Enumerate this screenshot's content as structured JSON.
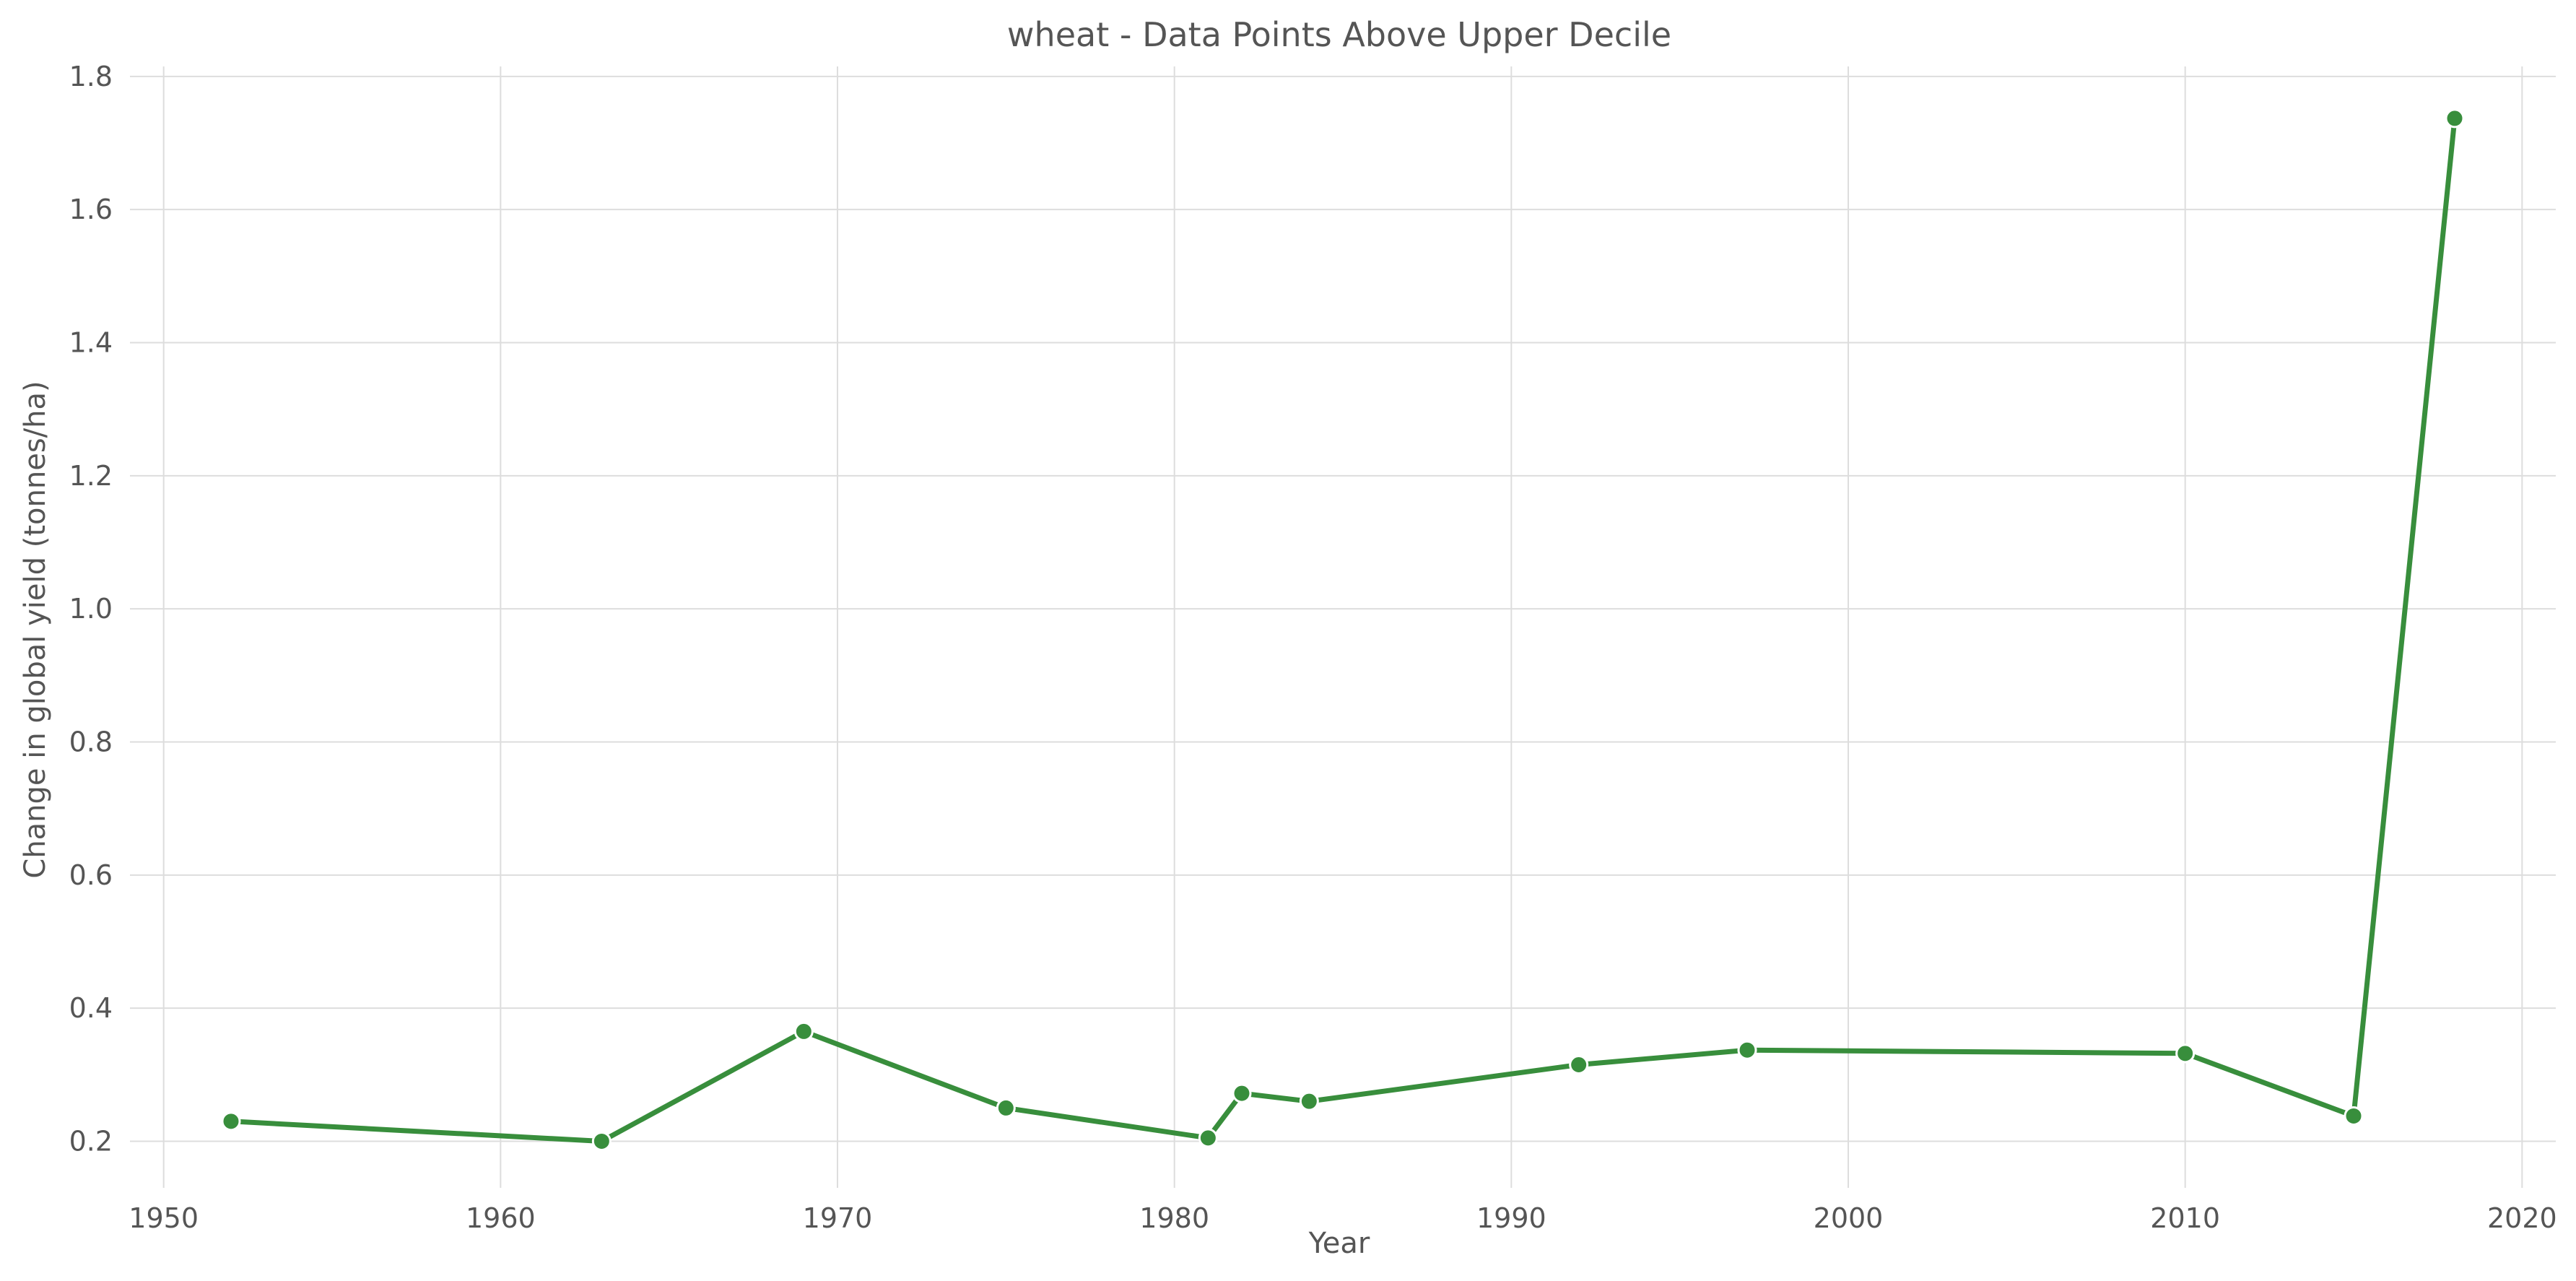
{
  "chart_data": {
    "type": "line",
    "title": "wheat - Data Points Above Upper Decile",
    "xlabel": "Year",
    "ylabel": "Change in global yield (tonnes/ha)",
    "xlim": [
      1949,
      2021
    ],
    "ylim": [
      0.13,
      1.815
    ],
    "xticks": [
      1950,
      1960,
      1970,
      1980,
      1990,
      2000,
      2010,
      2020
    ],
    "yticks": [
      0.2,
      0.4,
      0.6,
      0.8,
      1.0,
      1.2,
      1.4,
      1.6,
      1.8
    ],
    "ytick_labels": [
      "0.2",
      "0.4",
      "0.6",
      "0.8",
      "1.0",
      "1.2",
      "1.4",
      "1.6",
      "1.8"
    ],
    "grid": true,
    "color": "#388e3c",
    "x": [
      1952,
      1963,
      1969,
      1975,
      1981,
      1982,
      1984,
      1992,
      1997,
      2010,
      2015,
      2018
    ],
    "y": [
      0.23,
      0.2,
      0.365,
      0.25,
      0.205,
      0.272,
      0.26,
      0.315,
      0.337,
      0.332,
      0.238,
      1.737
    ]
  }
}
